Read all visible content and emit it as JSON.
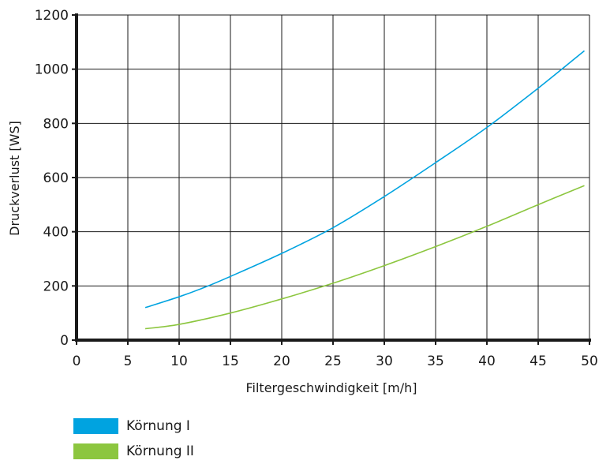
{
  "chart_data": {
    "type": "line",
    "xlabel": "Filtergeschwindigkeit [m/h]",
    "ylabel": "Druckverlust [WS]",
    "xlim": [
      0,
      50
    ],
    "ylim": [
      0,
      1200
    ],
    "xticks": [
      0,
      5,
      10,
      15,
      20,
      25,
      30,
      35,
      40,
      45,
      50
    ],
    "yticks": [
      0,
      200,
      400,
      600,
      800,
      1000,
      1200
    ],
    "grid": true,
    "legend_position": "bottom-left",
    "series": [
      {
        "name": "Körnung I",
        "color": "#00a3e0",
        "x": [
          6.7,
          10,
          12.5,
          15,
          20,
          25,
          30,
          35,
          40,
          45,
          49.5
        ],
        "y": [
          120,
          160,
          195,
          235,
          320,
          415,
          530,
          655,
          785,
          930,
          1068
        ]
      },
      {
        "name": "Körnung II",
        "color": "#8cc63f",
        "x": [
          6.7,
          10,
          15,
          20,
          25,
          30,
          35,
          40,
          45,
          49.5
        ],
        "y": [
          42,
          58,
          100,
          152,
          210,
          275,
          345,
          420,
          500,
          570
        ]
      }
    ]
  }
}
